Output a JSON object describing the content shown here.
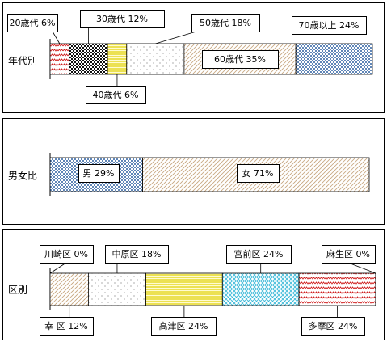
{
  "chart_data": [
    {
      "type": "stacked-bar",
      "row_label": "年代別",
      "segments": [
        {
          "label": "20歳代 6%",
          "value": 6,
          "pattern": "zigzag-red",
          "callout": "above"
        },
        {
          "label": "30歳代 12%",
          "value": 12,
          "pattern": "check-black",
          "callout": "above"
        },
        {
          "label": "40歳代 6%",
          "value": 6,
          "pattern": "hlines-yellow",
          "callout": "below"
        },
        {
          "label": "50歳代 18%",
          "value": 18,
          "pattern": "dots-gray",
          "callout": "above"
        },
        {
          "label": "60歳代 35%",
          "value": 35,
          "pattern": "diag-tan",
          "callout": "inside"
        },
        {
          "label": "70歳以上 24%",
          "value": 24,
          "pattern": "dots-blue",
          "callout": "above"
        }
      ]
    },
    {
      "type": "stacked-bar",
      "row_label": "男女比",
      "segments": [
        {
          "label": "男 29%",
          "value": 29,
          "pattern": "dots-blue",
          "callout": "inside"
        },
        {
          "label": "女 71%",
          "value": 71,
          "pattern": "diag-tan",
          "callout": "inside"
        }
      ]
    },
    {
      "type": "stacked-bar",
      "row_label": "区別",
      "segments": [
        {
          "label": "川崎区 0%",
          "value": 0,
          "pattern": "none",
          "callout": "above"
        },
        {
          "label": "幸 区 12%",
          "value": 12,
          "pattern": "diag-tan",
          "callout": "below"
        },
        {
          "label": "中原区 18%",
          "value": 18,
          "pattern": "dots-gray",
          "callout": "above"
        },
        {
          "label": "高津区 24%",
          "value": 24,
          "pattern": "hlines-yellow",
          "callout": "below"
        },
        {
          "label": "宮前区 24%",
          "value": 24,
          "pattern": "cross-cyan",
          "callout": "above"
        },
        {
          "label": "多摩区 24%",
          "value": 24,
          "pattern": "zigzag-red",
          "callout": "below"
        },
        {
          "label": "麻生区 0%",
          "value": 0,
          "pattern": "none",
          "callout": "above"
        }
      ]
    }
  ]
}
